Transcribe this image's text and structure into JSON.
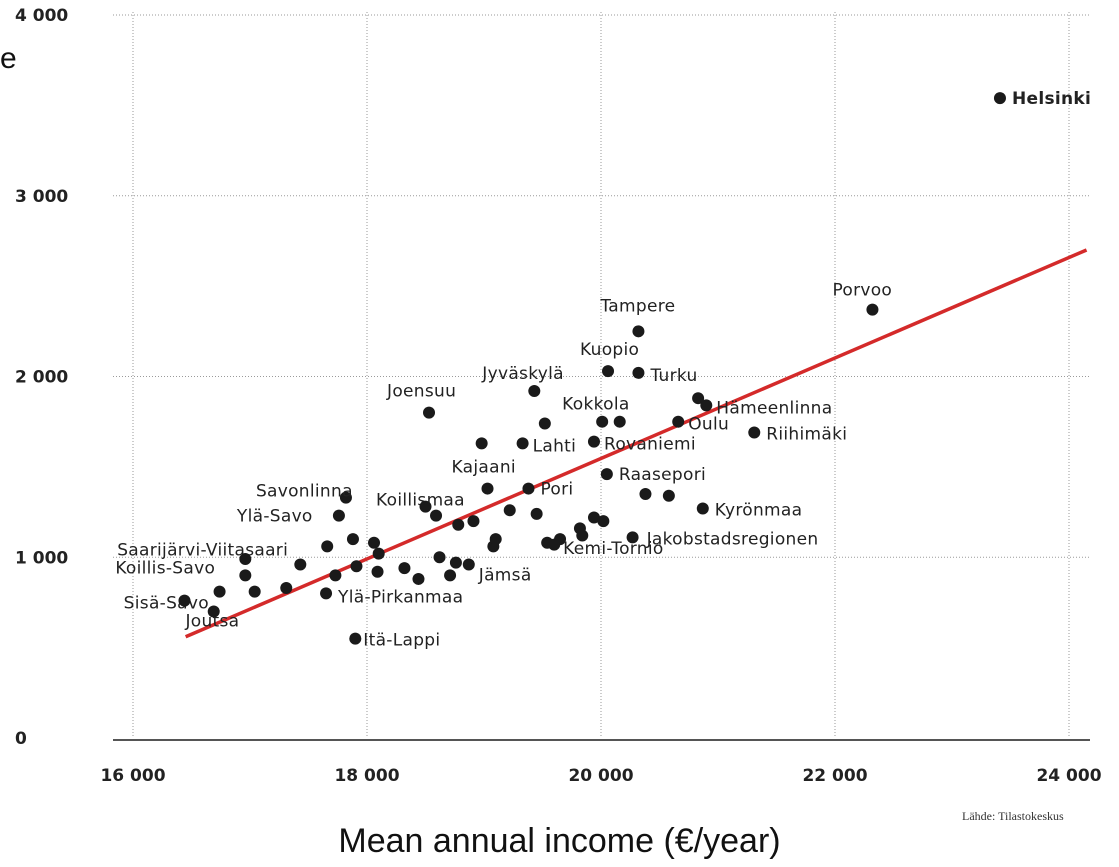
{
  "chart_data": {
    "type": "scatter",
    "xlabel": "Mean annual income (€/year)",
    "ylabel_fragment": "e",
    "source": "Lähde: Tilastokeskus",
    "xlim": [
      16000,
      24000
    ],
    "ylim": [
      0,
      4000
    ],
    "x_ticks": [
      16000,
      18000,
      20000,
      22000,
      24000
    ],
    "x_tick_labels": [
      "16 000",
      "18 000",
      "20 000",
      "22 000",
      "24 000"
    ],
    "y_ticks": [
      0,
      1000,
      2000,
      3000,
      4000
    ],
    "y_tick_labels": [
      "0",
      "1 000",
      "2 000",
      "3 000",
      "4 000"
    ],
    "grid": true,
    "trendline": {
      "color": "#d42a2a",
      "from": [
        16450,
        560
      ],
      "to": [
        24150,
        2700
      ]
    },
    "points": [
      {
        "x": 23410,
        "y": 3540,
        "label": "Helsinki",
        "bold": true
      },
      {
        "x": 22320,
        "y": 2370,
        "label": "Porvoo"
      },
      {
        "x": 20320,
        "y": 2250,
        "label": "Tampere"
      },
      {
        "x": 20060,
        "y": 2030,
        "label": "Kuopio"
      },
      {
        "x": 20320,
        "y": 2020,
        "label": "Turku"
      },
      {
        "x": 19430,
        "y": 1920,
        "label": "Jyväskylä"
      },
      {
        "x": 18530,
        "y": 1800,
        "label": "Joensuu"
      },
      {
        "x": 20010,
        "y": 1750,
        "label": "Kokkola"
      },
      {
        "x": 20900,
        "y": 1840,
        "label": "Hämeenlinna"
      },
      {
        "x": 20660,
        "y": 1750,
        "label": "Oulu"
      },
      {
        "x": 21310,
        "y": 1690,
        "label": "Riihimäki"
      },
      {
        "x": 19330,
        "y": 1630,
        "label": "Lahti"
      },
      {
        "x": 19940,
        "y": 1640,
        "label": "Rovaniemi"
      },
      {
        "x": 19030,
        "y": 1380,
        "label": "Kajaani"
      },
      {
        "x": 20050,
        "y": 1460,
        "label": "Raasepori"
      },
      {
        "x": 17820,
        "y": 1330,
        "label": "Savonlinna"
      },
      {
        "x": 18590,
        "y": 1230,
        "label": "Koillismaa"
      },
      {
        "x": 19380,
        "y": 1380,
        "label": "Pori"
      },
      {
        "x": 17760,
        "y": 1230,
        "label": "Ylä-Savo"
      },
      {
        "x": 20870,
        "y": 1270,
        "label": "Kyrönmaa"
      },
      {
        "x": 17660,
        "y": 1060,
        "label": "Saarijärvi-Viitasaari"
      },
      {
        "x": 20270,
        "y": 1110,
        "label": "Jakobstadsregionen"
      },
      {
        "x": 16960,
        "y": 900,
        "label": "Koillis-Savo"
      },
      {
        "x": 18870,
        "y": 960,
        "label": "Jämsä"
      },
      {
        "x": 19540,
        "y": 1080,
        "label": "Kemi-Tornio"
      },
      {
        "x": 17650,
        "y": 800,
        "label": "Ylä-Pirkanmaa"
      },
      {
        "x": 17040,
        "y": 810,
        "label": "Sisä-Savo"
      },
      {
        "x": 16440,
        "y": 760,
        "label": "Joutsa"
      },
      {
        "x": 17900,
        "y": 550,
        "label": "Itä-Lappi"
      },
      {
        "x": 16690,
        "y": 700
      },
      {
        "x": 16740,
        "y": 810
      },
      {
        "x": 16960,
        "y": 990
      },
      {
        "x": 17310,
        "y": 830
      },
      {
        "x": 17430,
        "y": 960
      },
      {
        "x": 17730,
        "y": 900
      },
      {
        "x": 17880,
        "y": 1100
      },
      {
        "x": 17910,
        "y": 950
      },
      {
        "x": 18060,
        "y": 1080
      },
      {
        "x": 18090,
        "y": 920
      },
      {
        "x": 18100,
        "y": 1020
      },
      {
        "x": 18320,
        "y": 940
      },
      {
        "x": 18440,
        "y": 880
      },
      {
        "x": 18500,
        "y": 1280
      },
      {
        "x": 18620,
        "y": 1000
      },
      {
        "x": 18710,
        "y": 900
      },
      {
        "x": 18760,
        "y": 970
      },
      {
        "x": 18780,
        "y": 1180
      },
      {
        "x": 18910,
        "y": 1200
      },
      {
        "x": 18980,
        "y": 1630
      },
      {
        "x": 19080,
        "y": 1060
      },
      {
        "x": 19100,
        "y": 1100
      },
      {
        "x": 19220,
        "y": 1260
      },
      {
        "x": 19450,
        "y": 1240
      },
      {
        "x": 19520,
        "y": 1740
      },
      {
        "x": 19600,
        "y": 1070
      },
      {
        "x": 19650,
        "y": 1100
      },
      {
        "x": 19820,
        "y": 1160
      },
      {
        "x": 19840,
        "y": 1120
      },
      {
        "x": 19940,
        "y": 1220
      },
      {
        "x": 20020,
        "y": 1200
      },
      {
        "x": 20160,
        "y": 1750
      },
      {
        "x": 20380,
        "y": 1350
      },
      {
        "x": 20580,
        "y": 1340
      },
      {
        "x": 20830,
        "y": 1880
      }
    ]
  }
}
